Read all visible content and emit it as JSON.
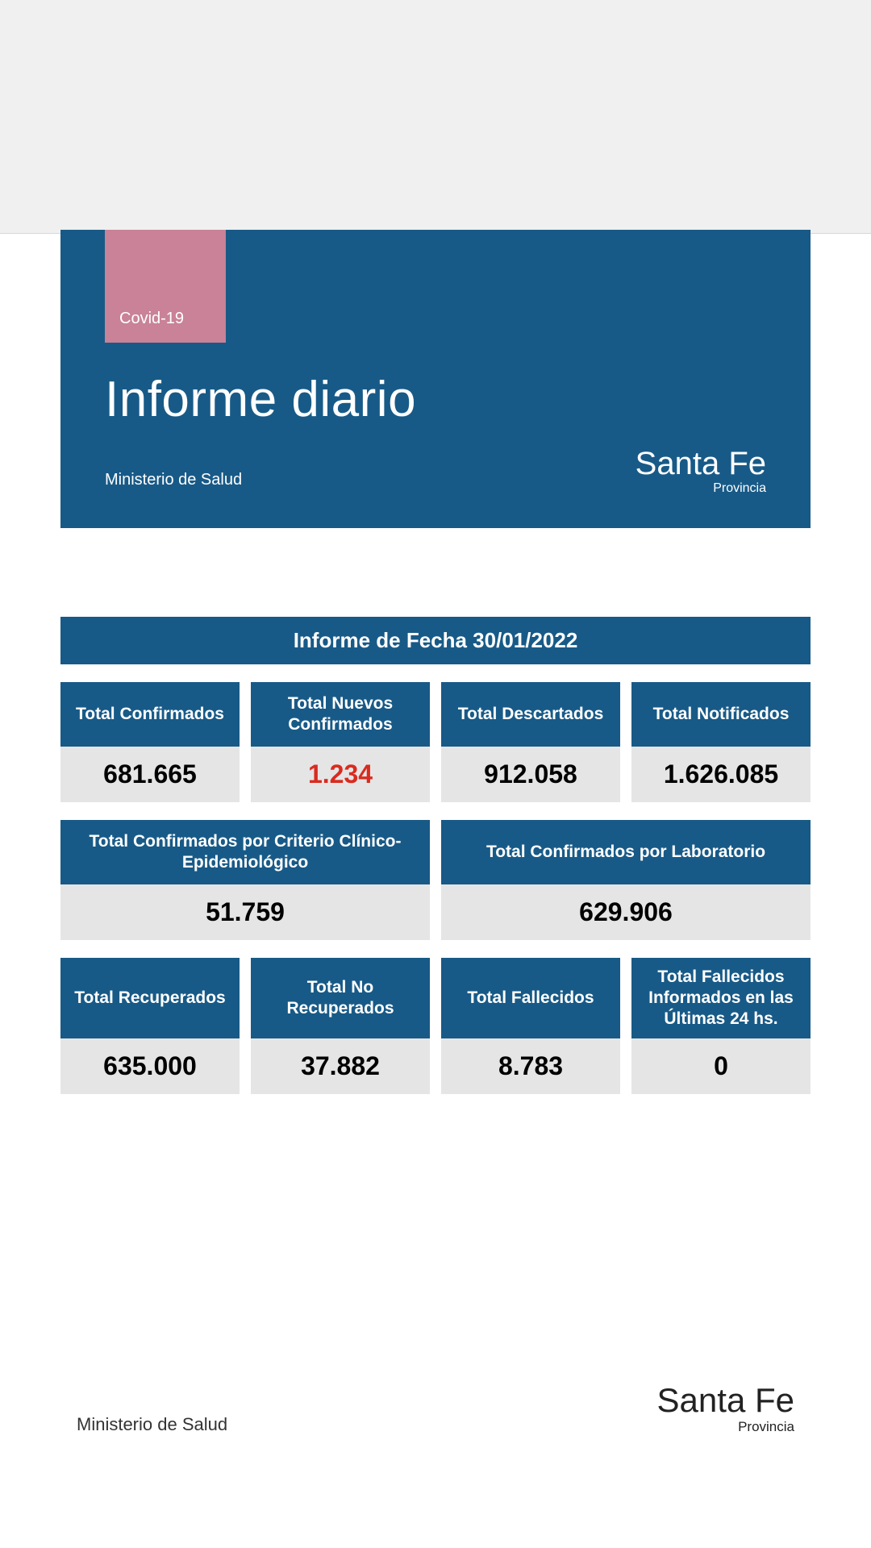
{
  "colors": {
    "primary": "#185a87",
    "accent_pink": "#c98297",
    "value_bg": "#e5e5e5",
    "highlight": "#d92b1f",
    "top_gray": "#f0f0f0"
  },
  "header": {
    "tag": "Covid-19",
    "title": "Informe diario",
    "subtitle": "Ministerio de Salud",
    "logo_main": "Santa Fe",
    "logo_sub": "Provincia"
  },
  "date_banner": "Informe de Fecha 30/01/2022",
  "row1": [
    {
      "label": "Total Confirmados",
      "value": "681.665",
      "highlight": false
    },
    {
      "label": "Total Nuevos Confirmados",
      "value": "1.234",
      "highlight": true
    },
    {
      "label": "Total Descartados",
      "value": "912.058",
      "highlight": false
    },
    {
      "label": "Total Notificados",
      "value": "1.626.085",
      "highlight": false
    }
  ],
  "row2": [
    {
      "label": "Total Confirmados por Criterio Clínico-Epidemiológico",
      "value": "51.759"
    },
    {
      "label": "Total Confirmados por Laboratorio",
      "value": "629.906"
    }
  ],
  "row3": [
    {
      "label": "Total Recuperados",
      "value": "635.000"
    },
    {
      "label": "Total No Recuperados",
      "value": "37.882"
    },
    {
      "label": "Total Fallecidos",
      "value": "8.783"
    },
    {
      "label": "Total Fallecidos Informados en las Últimas 24 hs.",
      "value": "0"
    }
  ],
  "footer": {
    "left": "Ministerio de Salud",
    "logo_main": "Santa Fe",
    "logo_sub": "Provincia"
  }
}
